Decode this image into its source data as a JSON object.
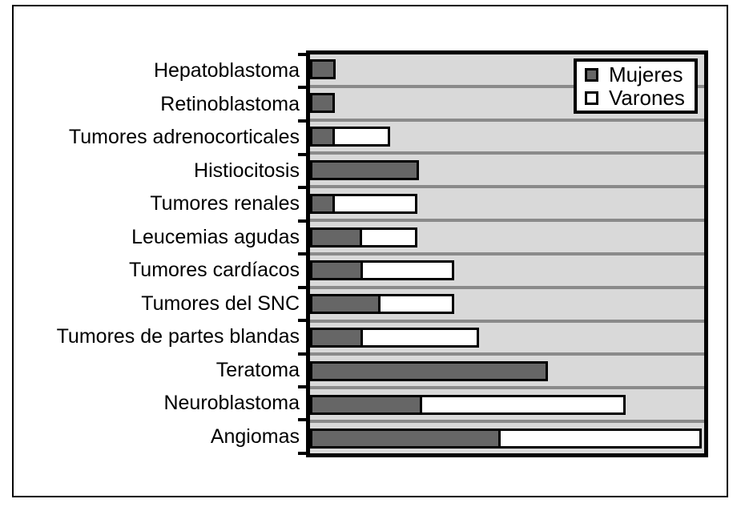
{
  "chart_data": {
    "type": "bar",
    "orientation": "horizontal",
    "stacked": true,
    "title": "",
    "xlabel": "",
    "ylabel": "",
    "categories": [
      "Hepatoblastoma",
      "Retinoblastoma",
      "Tumores adrenocorticales",
      "Histiocitosis",
      "Tumores renales",
      "Leucemias agudas",
      "Tumores cardíacos",
      "Tumores del SNC",
      "Tumores de partes blandas",
      "Teratoma",
      "Neuroblastoma",
      "Angiomas"
    ],
    "series": [
      {
        "name": "Mujeres",
        "color": "#666666",
        "values": [
          6.5,
          6.4,
          6.4,
          27.6,
          6.4,
          13.3,
          13.5,
          17.8,
          13.5,
          60.3,
          28.4,
          48.3
        ]
      },
      {
        "name": "Varones",
        "color": "#ffffff",
        "values": [
          0,
          0,
          14.5,
          0,
          21.4,
          14.5,
          23.7,
          19.4,
          29.9,
          0,
          52.2,
          51.7
        ]
      }
    ],
    "xlim": [
      0,
      100
    ],
    "x_tick_labels_visible": false,
    "grid": "gray row separator lines between categories",
    "legend_position": "top-right inside plot",
    "values_unit": "relative length, % of axis (no numeric axis labels shown; Angiomas total = 100)"
  },
  "legend": {
    "items": [
      {
        "label": "Mujeres",
        "color": "#666666"
      },
      {
        "label": "Varones",
        "color": "#ffffff"
      }
    ]
  },
  "colors": {
    "figure_background": "#ffffff",
    "figure_border": "#000000",
    "plot_background": "#d9d9d9",
    "separator_line": "#8a8a8a",
    "bar_border": "#000000",
    "mujeres_fill": "#666666",
    "varones_fill": "#ffffff",
    "text": "#000000"
  }
}
